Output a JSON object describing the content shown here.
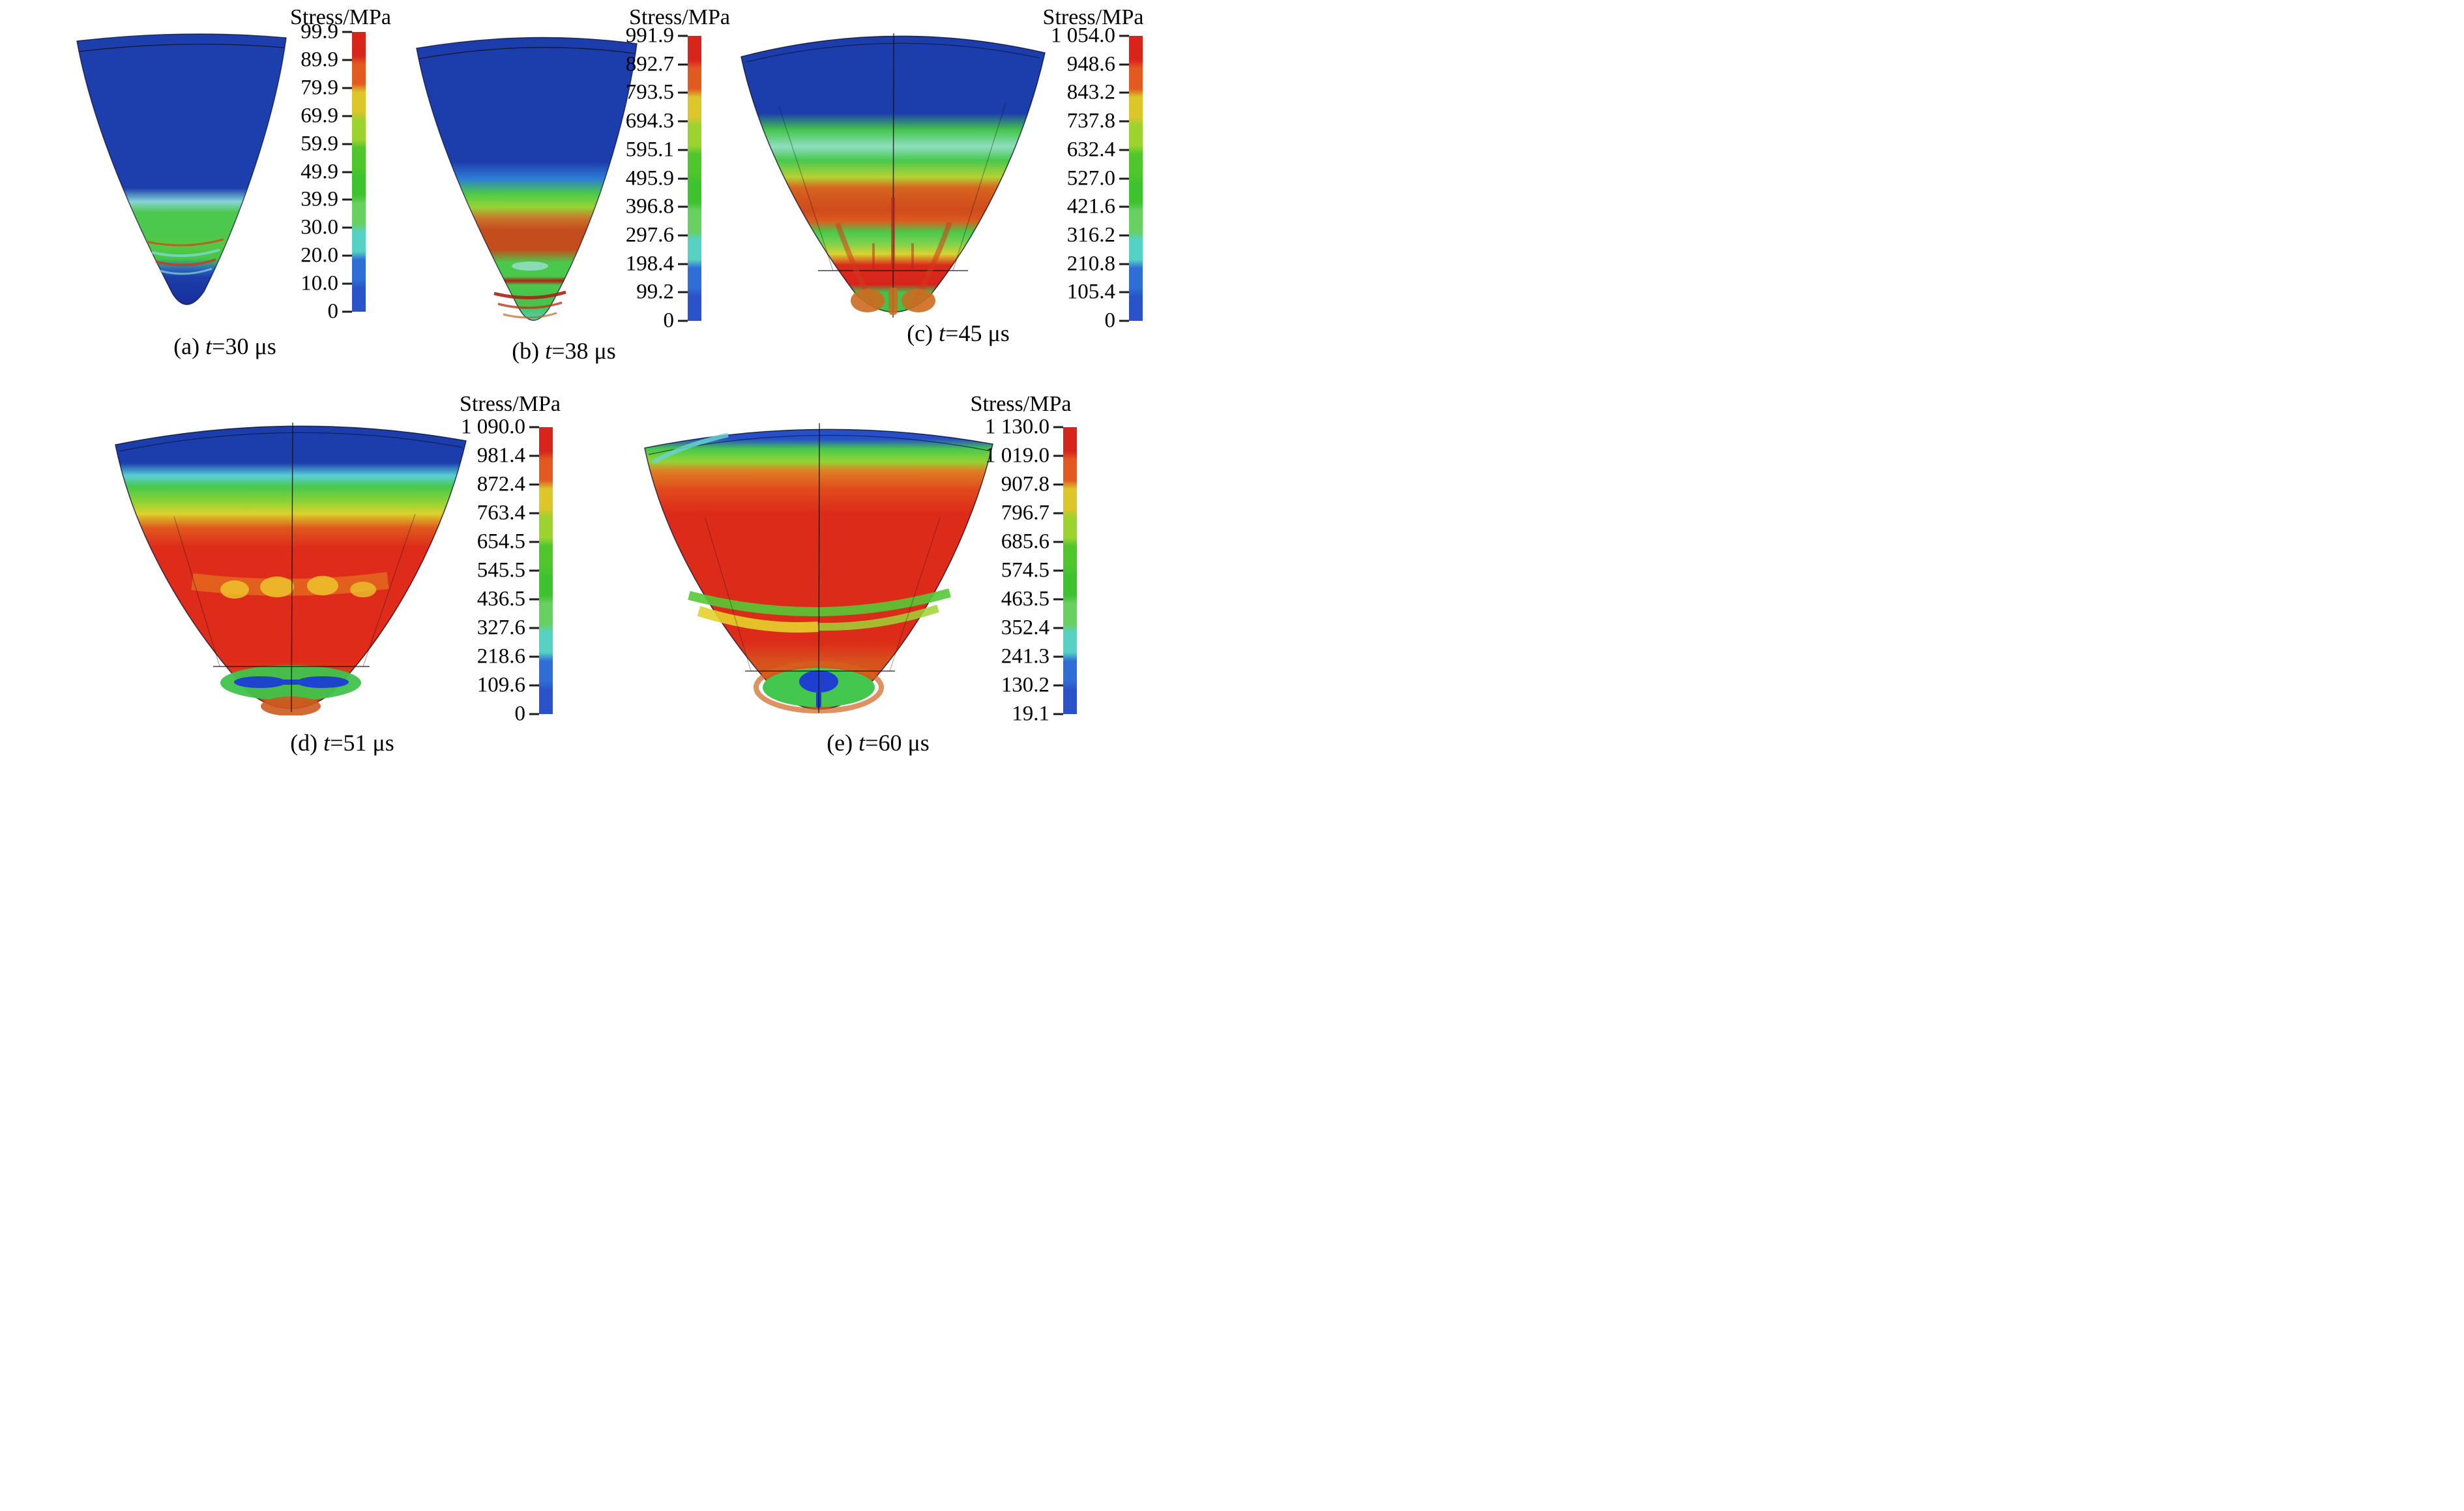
{
  "figure": {
    "background": "#ffffff",
    "panels_count": 5,
    "quantity": "Stress",
    "unit": "MPa"
  },
  "colorbar_palette_top_to_bottom": [
    "#d8251c",
    "#e25a20",
    "#dcc62a",
    "#9cd32f",
    "#4fc62b",
    "#3ec32f",
    "#68d061",
    "#55d2c3",
    "#2e6ed6",
    "#2a53c9"
  ],
  "figures": [
    {
      "id": "a",
      "caption": {
        "index": "(a) ",
        "symbol": "t",
        "rest": "=30 μs"
      },
      "colorbar": {
        "title": "Stress/MPa",
        "labels": [
          "99.9",
          "89.9",
          "79.9",
          "69.9",
          "59.9",
          "49.9",
          "39.9",
          "30.0",
          "20.0",
          "10.0",
          "0"
        ]
      }
    },
    {
      "id": "b",
      "caption": {
        "index": "(b) ",
        "symbol": "t",
        "rest": "=38 μs"
      },
      "colorbar": {
        "title": "Stress/MPa",
        "labels": [
          "991.9",
          "892.7",
          "793.5",
          "694.3",
          "595.1",
          "495.9",
          "396.8",
          "297.6",
          "198.4",
          "99.2",
          "0"
        ]
      }
    },
    {
      "id": "c",
      "caption": {
        "index": "(c) ",
        "symbol": "t",
        "rest": "=45 μs"
      },
      "colorbar": {
        "title": "Stress/MPa",
        "labels": [
          "1 054.0",
          "948.6",
          "843.2",
          "737.8",
          "632.4",
          "527.0",
          "421.6",
          "316.2",
          "210.8",
          "105.4",
          "0"
        ]
      }
    },
    {
      "id": "d",
      "caption": {
        "index": "(d) ",
        "symbol": "t",
        "rest": "=51 μs"
      },
      "colorbar": {
        "title": "Stress/MPa",
        "labels": [
          "1 090.0",
          "981.4",
          "872.4",
          "763.4",
          "654.5",
          "545.5",
          "436.5",
          "327.6",
          "218.6",
          "109.6",
          "0"
        ]
      }
    },
    {
      "id": "e",
      "caption": {
        "index": "(e) ",
        "symbol": "t",
        "rest": "=60 μs"
      },
      "colorbar": {
        "title": "Stress/MPa",
        "labels": [
          "1 130.0",
          "1 019.0",
          "907.8",
          "796.7",
          "685.6",
          "574.5",
          "463.5",
          "352.4",
          "241.3",
          "130.2",
          "19.1"
        ]
      }
    }
  ],
  "chart_data": [
    {
      "type": "heatmap",
      "panel": "a",
      "title": "(a) t=30 μs",
      "time_us": 30,
      "quantity": "Stress",
      "unit": "MPa",
      "legend_title": "Stress/MPa",
      "scale_min": 0,
      "scale_max": 99.9,
      "colorbar_ticks": [
        99.9,
        89.9,
        79.9,
        69.9,
        59.9,
        49.9,
        39.9,
        30.0,
        20.0,
        10.0,
        0
      ],
      "legend_position": "right",
      "description": "Conical liner section, mostly low stress (blue) with a green band and thin red arcs near the lower tip"
    },
    {
      "type": "heatmap",
      "panel": "b",
      "title": "(b) t=38 μs",
      "time_us": 38,
      "quantity": "Stress",
      "unit": "MPa",
      "legend_title": "Stress/MPa",
      "scale_min": 0,
      "scale_max": 991.9,
      "colorbar_ticks": [
        991.9,
        892.7,
        793.5,
        694.3,
        595.1,
        495.9,
        396.8,
        297.6,
        198.4,
        99.2,
        0
      ],
      "legend_position": "right",
      "description": "Blue upper half, green and orange-red stress bands in lower half, thin dark-red arcs near tip"
    },
    {
      "type": "heatmap",
      "panel": "c",
      "title": "(c) t=45 μs",
      "time_us": 45,
      "quantity": "Stress",
      "unit": "MPa",
      "legend_title": "Stress/MPa",
      "scale_min": 0,
      "scale_max": 1054.0,
      "colorbar_ticks": [
        1054.0,
        948.6,
        843.2,
        737.8,
        632.4,
        527.0,
        421.6,
        316.2,
        210.8,
        105.4,
        0
      ],
      "legend_position": "right",
      "description": "Widened cone, blue top, alternating green / orange-red / yellow / red bands, green zone with orange blobs at bottom"
    },
    {
      "type": "heatmap",
      "panel": "d",
      "title": "(d) t=51 μs",
      "time_us": 51,
      "quantity": "Stress",
      "unit": "MPa",
      "legend_title": "Stress/MPa",
      "scale_min": 0,
      "scale_max": 1090.0,
      "colorbar_ticks": [
        1090.0,
        981.4,
        872.4,
        763.4,
        654.5,
        545.5,
        436.5,
        327.6,
        218.6,
        109.6,
        0
      ],
      "legend_position": "right",
      "description": "Wide cone, blue rim then cyan/green/yellow bands, large red region with yellow patches, green arc with dark-blue blobs near tip"
    },
    {
      "type": "heatmap",
      "panel": "e",
      "title": "(e) t=60 μs",
      "time_us": 60,
      "quantity": "Stress",
      "unit": "MPa",
      "legend_title": "Stress/MPa",
      "scale_min": 19.1,
      "scale_max": 1130.0,
      "colorbar_ticks": [
        1130.0,
        1019.0,
        907.8,
        796.7,
        685.6,
        574.5,
        463.5,
        352.4,
        241.3,
        130.2,
        19.1
      ],
      "legend_position": "right",
      "description": "Mostly red/orange cone with thin blue rim, green upper band, green-yellow middle band, green patch with blue blob at tip"
    }
  ]
}
